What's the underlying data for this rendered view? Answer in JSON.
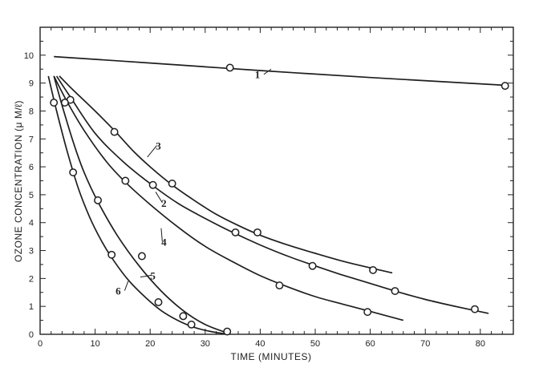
{
  "chart_data": {
    "type": "scatter",
    "title": "",
    "xlabel": "TIME (MINUTES)",
    "ylabel": "OZONE CONCENTRATION (μ M/ℓ)",
    "xlim": [
      0,
      86
    ],
    "ylim": [
      0,
      11
    ],
    "xticks": [
      0,
      10,
      20,
      30,
      40,
      50,
      60,
      70,
      80
    ],
    "yticks": [
      0,
      1,
      2,
      3,
      4,
      5,
      6,
      7,
      8,
      9,
      10
    ],
    "grid": false,
    "legend": "none",
    "series": [
      {
        "name": "1",
        "points": [
          [
            34.5,
            9.55
          ],
          [
            84.5,
            8.9
          ]
        ],
        "curve": [
          [
            2.5,
            9.95
          ],
          [
            20,
            9.72
          ],
          [
            40,
            9.45
          ],
          [
            60,
            9.2
          ],
          [
            84.5,
            8.92
          ]
        ]
      },
      {
        "name": "2",
        "points": [
          [
            5.5,
            8.4
          ],
          [
            20.5,
            5.35
          ],
          [
            35.5,
            3.65
          ],
          [
            49.5,
            2.45
          ],
          [
            64.5,
            1.55
          ],
          [
            79,
            0.9
          ]
        ],
        "curve": [
          [
            3,
            9.25
          ],
          [
            5.5,
            8.5
          ],
          [
            10,
            7.2
          ],
          [
            15,
            6.2
          ],
          [
            20,
            5.4
          ],
          [
            25,
            4.7
          ],
          [
            30,
            4.15
          ],
          [
            35,
            3.65
          ],
          [
            40,
            3.2
          ],
          [
            45,
            2.8
          ],
          [
            50,
            2.45
          ],
          [
            55,
            2.12
          ],
          [
            60,
            1.82
          ],
          [
            65,
            1.52
          ],
          [
            70,
            1.25
          ],
          [
            75,
            1.02
          ],
          [
            81.5,
            0.75
          ]
        ]
      },
      {
        "name": "3",
        "points": [
          [
            13.5,
            7.25
          ],
          [
            24,
            5.4
          ],
          [
            39.5,
            3.65
          ],
          [
            60.5,
            2.3
          ]
        ],
        "curve": [
          [
            3.5,
            9.25
          ],
          [
            6,
            8.75
          ],
          [
            10,
            8.0
          ],
          [
            13.5,
            7.3
          ],
          [
            17,
            6.55
          ],
          [
            20,
            6.0
          ],
          [
            24,
            5.35
          ],
          [
            28,
            4.8
          ],
          [
            32,
            4.3
          ],
          [
            36,
            3.9
          ],
          [
            40,
            3.55
          ],
          [
            45,
            3.2
          ],
          [
            50,
            2.9
          ],
          [
            55,
            2.62
          ],
          [
            60,
            2.38
          ],
          [
            64,
            2.2
          ]
        ]
      },
      {
        "name": "4",
        "points": [
          [
            2.5,
            8.3
          ],
          [
            4.5,
            8.3
          ],
          [
            15.5,
            5.5
          ],
          [
            43.5,
            1.75
          ],
          [
            59.5,
            0.8
          ]
        ],
        "curve": [
          [
            2.5,
            9.25
          ],
          [
            5,
            8.3
          ],
          [
            8,
            7.3
          ],
          [
            12,
            6.2
          ],
          [
            15.5,
            5.45
          ],
          [
            20,
            4.65
          ],
          [
            25,
            3.85
          ],
          [
            30,
            3.15
          ],
          [
            35,
            2.6
          ],
          [
            40,
            2.1
          ],
          [
            45,
            1.7
          ],
          [
            50,
            1.35
          ],
          [
            55,
            1.08
          ],
          [
            60,
            0.82
          ],
          [
            66,
            0.5
          ]
        ]
      },
      {
        "name": "5",
        "points": [
          [
            6,
            5.8
          ],
          [
            10.5,
            4.8
          ],
          [
            18.5,
            2.8
          ],
          [
            21.5,
            1.15
          ],
          [
            26,
            0.65
          ],
          [
            34,
            0.1
          ]
        ],
        "curve": [
          [
            2.5,
            9.25
          ],
          [
            4,
            8.2
          ],
          [
            6,
            6.9
          ],
          [
            8,
            5.8
          ],
          [
            10.5,
            4.75
          ],
          [
            14,
            3.55
          ],
          [
            18,
            2.45
          ],
          [
            22,
            1.55
          ],
          [
            26,
            0.85
          ],
          [
            30,
            0.35
          ],
          [
            34,
            0.05
          ]
        ]
      },
      {
        "name": "6",
        "points": [
          [
            13,
            2.85
          ],
          [
            27.5,
            0.35
          ]
        ],
        "curve": [
          [
            1.5,
            9.25
          ],
          [
            3,
            8.0
          ],
          [
            5,
            6.5
          ],
          [
            7,
            5.2
          ],
          [
            9,
            4.2
          ],
          [
            11,
            3.4
          ],
          [
            13,
            2.75
          ],
          [
            16,
            1.95
          ],
          [
            19,
            1.35
          ],
          [
            22,
            0.85
          ],
          [
            25,
            0.5
          ],
          [
            28,
            0.25
          ],
          [
            31,
            0.1
          ],
          [
            33.5,
            0.02
          ]
        ]
      }
    ],
    "curve_labels": [
      {
        "text": "1",
        "x": 39.5,
        "y": 9.2,
        "lx": 42,
        "ly": 9.5
      },
      {
        "text": "3",
        "x": 21.5,
        "y": 6.65,
        "lx": 19.5,
        "ly": 6.35
      },
      {
        "text": "2",
        "x": 22.5,
        "y": 4.6,
        "lx": 21,
        "ly": 5.1
      },
      {
        "text": "4",
        "x": 22.5,
        "y": 3.2,
        "lx": 22,
        "ly": 3.8
      },
      {
        "text": "5",
        "x": 20.5,
        "y": 2.0,
        "lx": 18.2,
        "ly": 2.05
      },
      {
        "text": "6",
        "x": 14.2,
        "y": 1.45,
        "lx": 16,
        "ly": 1.9
      }
    ]
  }
}
